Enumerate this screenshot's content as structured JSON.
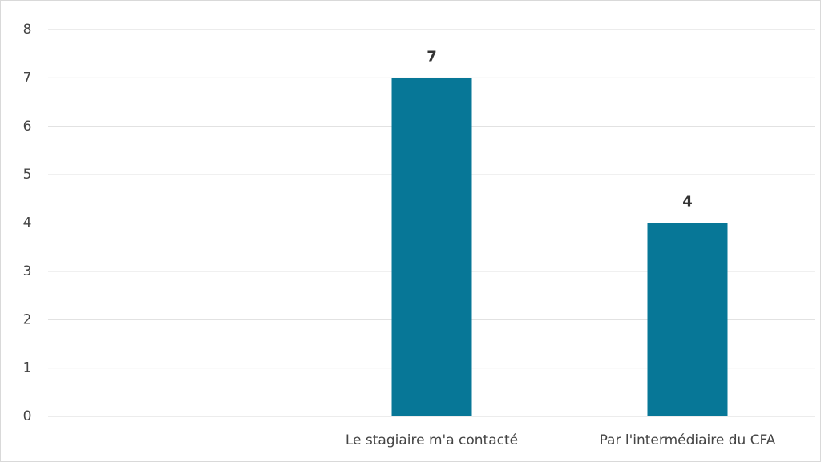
{
  "chart_data": {
    "type": "bar",
    "categories": [
      null,
      "Le stagiaire m'a contacté",
      "Par l'intermédiaire du CFA"
    ],
    "values": [
      null,
      7,
      4
    ],
    "color": "#077797",
    "ylim": [
      0,
      8
    ],
    "yticks": [
      0,
      1,
      2,
      3,
      4,
      5,
      6,
      7,
      8
    ],
    "grid": true
  }
}
